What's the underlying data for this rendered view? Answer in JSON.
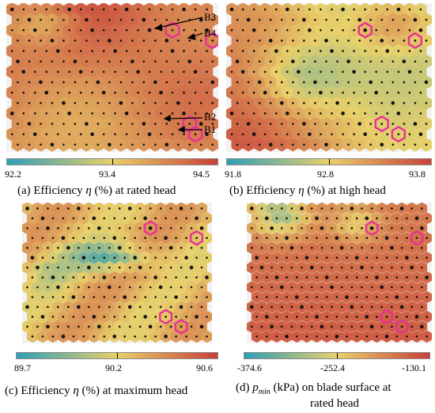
{
  "colors": {
    "low": "#2f9fb5",
    "mid": "#e8d06a",
    "high": "#c8403a",
    "marker": "#e8309a",
    "neuron": "#111111"
  },
  "panels": [
    {
      "id": "a",
      "caption_prefix": "(a) Efficiency ",
      "caption_symbol": "η",
      "caption_suffix": " (%) at rated head",
      "caption_line2": "",
      "ticks": [
        "92.2",
        "93.4",
        "94.5"
      ],
      "callouts": [
        "B3",
        "B4",
        "B2",
        "B1"
      ]
    },
    {
      "id": "b",
      "caption_prefix": "(b) Efficiency ",
      "caption_symbol": "η",
      "caption_suffix": " (%) at high head",
      "caption_line2": "",
      "ticks": [
        "91.8",
        "92.8",
        "93.8"
      ],
      "callouts": []
    },
    {
      "id": "c",
      "caption_prefix": "(c) Efficiency ",
      "caption_symbol": "η",
      "caption_suffix": " (%) at maximum head",
      "caption_line2": "",
      "ticks": [
        "89.7",
        "90.2",
        "90.6"
      ],
      "callouts": []
    },
    {
      "id": "d",
      "caption_prefix": "(d) ",
      "caption_symbol": "p",
      "caption_sub": "min",
      "caption_suffix": " (kPa) on blade surface at",
      "caption_line2": "rated head",
      "ticks": [
        "-374.6",
        "-252.4",
        "-130.1"
      ],
      "callouts": []
    }
  ]
}
